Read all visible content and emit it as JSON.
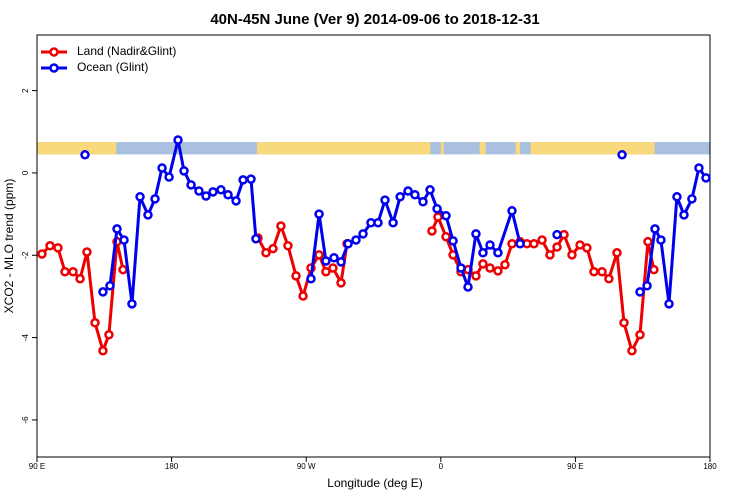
{
  "chart_data": {
    "type": "line",
    "title": "40N-45N June (Ver 9)   2014-09-06 to 2018-12-31",
    "xlabel": "Longitude (deg E)",
    "ylabel": "XCO2 - MLO trend (ppm)",
    "xlim": [
      90,
      540
    ],
    "ylim": [
      -6.9,
      3.35
    ],
    "xticks": [
      {
        "value": 90,
        "label": "90 E"
      },
      180,
      {
        "value": 270,
        "label": "90 W"
      },
      {
        "value": 360,
        "label": "0"
      },
      {
        "value": 450,
        "label": "90 E"
      },
      {
        "value": 540,
        "label": "180"
      }
    ],
    "yticks": [
      -6,
      -4,
      -2,
      0,
      2
    ],
    "legend": "top-left",
    "strip": {
      "ylim": [
        0.45,
        0.75
      ],
      "color": "#a9c0e0",
      "segment_color": "#f8d97b",
      "segments": [
        [
          90,
          143
        ],
        [
          237,
          353
        ],
        [
          360,
          362
        ],
        [
          386,
          390
        ],
        [
          410,
          413
        ],
        [
          420,
          503
        ]
      ]
    },
    "series": [
      {
        "name": "Land (Nadir&Glint)",
        "color": "#ee0000",
        "x": [
          93.3,
          98.7,
          104,
          108.7,
          114.1,
          118.8,
          123.4,
          128.8,
          134.1,
          138.1,
          143.5,
          147.5,
          null,
          237.8,
          243.1,
          247.8,
          253.1,
          257.8,
          263.2,
          267.9,
          273.2,
          278.6,
          283.2,
          287.9,
          293.3,
          297.3,
          null,
          354.1,
          358.1,
          363.5,
          368.2,
          373.5,
          378.2,
          383.5,
          388.2,
          392.9,
          398.2,
          402.9,
          407.6,
          413,
          417.6,
          422.3,
          427.7,
          433,
          437.7,
          442.4,
          447.7,
          453.1,
          457.7,
          462.4,
          467.8,
          472.4,
          477.8,
          482.5,
          487.8,
          493.2,
          498.5,
          502.5
        ],
        "values": [
          -1.97,
          -1.77,
          -1.82,
          -2.4,
          -2.4,
          -2.57,
          -1.92,
          -3.64,
          -4.32,
          -3.93,
          -1.67,
          -2.35,
          null,
          -1.58,
          -1.94,
          -1.84,
          -1.29,
          -1.77,
          -2.5,
          -2.99,
          -2.31,
          -1.99,
          -2.4,
          -2.31,
          -2.67,
          -1.72,
          null,
          -1.41,
          -1.07,
          -1.55,
          -1.99,
          -2.4,
          -2.35,
          -2.5,
          -2.21,
          -2.31,
          -2.38,
          -2.23,
          -1.72,
          -1.67,
          -1.72,
          -1.72,
          -1.63,
          -1.99,
          -1.8,
          -1.5,
          -1.99,
          -1.75,
          -1.82,
          -2.4,
          -2.4,
          -2.57,
          -1.94,
          -3.64,
          -4.32,
          -3.93,
          -1.67,
          -2.35
        ]
      },
      {
        "name": "Ocean (Glint)",
        "color": "#0000ee",
        "x": [
          122.1,
          null,
          134.1,
          138.8,
          143.5,
          148.2,
          153.5,
          158.9,
          164.2,
          168.9,
          173.6,
          178.3,
          184.3,
          188.3,
          193,
          198.3,
          203,
          207.7,
          213,
          217.7,
          223.1,
          227.8,
          233.1,
          236.4,
          null,
          273.2,
          278.6,
          283.2,
          288.6,
          293.3,
          298,
          303.3,
          308,
          313.3,
          318,
          322.7,
          328.1,
          332.8,
          338.1,
          342.7,
          348.1,
          352.8,
          357.5,
          363.5,
          368.2,
          373.5,
          378.2,
          383.5,
          388.2,
          392.9,
          398.2,
          407.6,
          413,
          null,
          437.7,
          null,
          481.2,
          null,
          493.2,
          497.9,
          503.2,
          507.2,
          512.6,
          517.9,
          522.6,
          527.9,
          532.6,
          537.3
        ],
        "values": [
          0.44,
          null,
          -2.89,
          -2.74,
          -1.36,
          -1.63,
          -3.18,
          -0.58,
          -1.02,
          -0.63,
          0.12,
          -0.1,
          0.8,
          0.05,
          -0.29,
          -0.44,
          -0.56,
          -0.46,
          -0.41,
          -0.53,
          -0.68,
          -0.17,
          -0.15,
          -1.6,
          null,
          -2.57,
          -1,
          -2.14,
          -2.06,
          -2.16,
          -1.72,
          -1.63,
          -1.48,
          -1.21,
          -1.21,
          -0.66,
          -1.21,
          -0.58,
          -0.44,
          -0.53,
          -0.7,
          -0.41,
          -0.87,
          -1.04,
          -1.65,
          -2.31,
          -2.77,
          -1.48,
          -1.94,
          -1.75,
          -1.94,
          -0.92,
          -1.72,
          null,
          -1.5,
          null,
          0.44,
          null,
          -2.89,
          -2.74,
          -1.36,
          -1.63,
          -3.18,
          -0.58,
          -1.02,
          -0.63,
          0.12,
          -0.12
        ]
      }
    ]
  }
}
